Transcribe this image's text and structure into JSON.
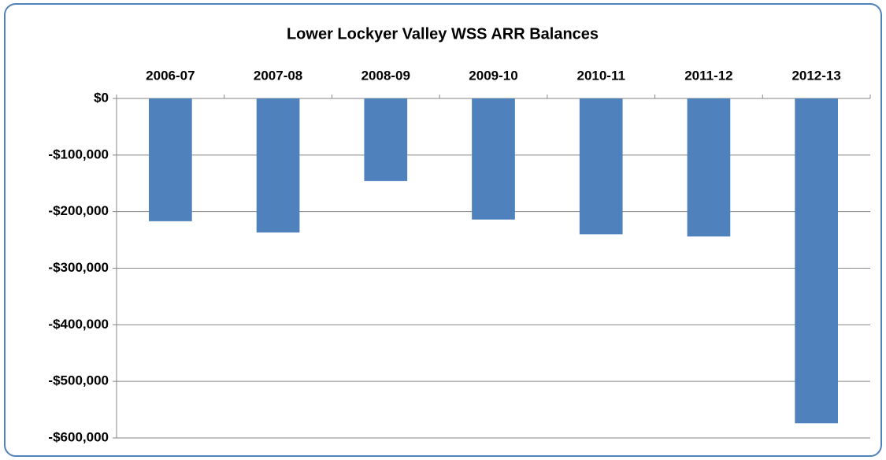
{
  "chart_data": {
    "type": "bar",
    "title": "Lower Lockyer Valley WSS ARR Balances",
    "categories": [
      "2006-07",
      "2007-08",
      "2008-09",
      "2009-10",
      "2010-11",
      "2011-12",
      "2012-13"
    ],
    "values": [
      -217000,
      -237000,
      -146000,
      -214000,
      -240000,
      -244000,
      -574000
    ],
    "color": "#4f81bd",
    "ylim": [
      -600000,
      0
    ],
    "yticks": [
      {
        "value": -600000,
        "label": "-$600,000"
      },
      {
        "value": -500000,
        "label": "-$500,000"
      },
      {
        "value": -400000,
        "label": "-$400,000"
      },
      {
        "value": -300000,
        "label": "-$300,000"
      },
      {
        "value": -200000,
        "label": "-$200,000"
      },
      {
        "value": -100000,
        "label": "-$100,000"
      },
      {
        "value": 0,
        "label": "$0"
      }
    ],
    "grid": true
  }
}
